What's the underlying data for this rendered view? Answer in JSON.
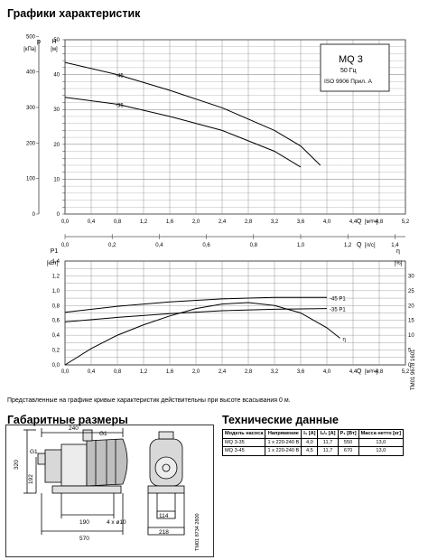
{
  "sections": {
    "curves_title": "Графики характеристик",
    "dims_title": "Габаритные размеры",
    "tech_title": "Технические данные"
  },
  "legend_box": {
    "model": "MQ 3",
    "freq": "50 Гц",
    "standard": "ISO 9906 Прил. A"
  },
  "note": "Представленные на графике кривые характеристик действительны при высоте всасывания 0 м.",
  "vertical_code_curves": "TM01 9678 1601",
  "vertical_code_dims": "TM01 8734 2800",
  "axis_units": {
    "p_label": "p",
    "p_unit": "[кПа]",
    "h_label": "H",
    "h_unit": "[м]",
    "q_label": "Q",
    "q_unit_m3": "[м³/ч]",
    "q_unit_ls": "[л/с]",
    "p1_label": "P1",
    "p1_unit": "[кВт]",
    "eta_label": "η",
    "eta_unit": "[%]"
  },
  "chart_data": [
    {
      "type": "line",
      "title": "",
      "xlabel": "Q [м³/ч]",
      "ylabel": "H [м]",
      "ylim": [
        0,
        50
      ],
      "xlim": [
        0,
        5.2
      ],
      "x_ticks": [
        "0.0",
        "0.4",
        "0.8",
        "1.2",
        "1.6",
        "2.0",
        "2.4",
        "2.8",
        "3.2",
        "3.6",
        "4.0",
        "4.4",
        "4.8",
        "5.2"
      ],
      "y_ticks": [
        "0",
        "10",
        "20",
        "30",
        "40",
        "50"
      ],
      "p_ticks": [
        "0",
        "100",
        "200",
        "300",
        "400",
        "500"
      ],
      "q_ls_ticks": [
        "0.0",
        "0.2",
        "0.4",
        "0.6",
        "0.8",
        "1.0",
        "1.2",
        "1.4"
      ],
      "grid": true,
      "series": [
        {
          "name": "-45",
          "x": [
            0,
            0.8,
            1.6,
            2.4,
            3.2,
            3.6,
            3.9
          ],
          "y": [
            43.5,
            40,
            35.5,
            30.5,
            24,
            19.5,
            14
          ]
        },
        {
          "name": "-35",
          "x": [
            0,
            0.8,
            1.6,
            2.4,
            3.2,
            3.6
          ],
          "y": [
            33.5,
            31.5,
            28,
            24,
            18,
            13.5
          ]
        }
      ]
    },
    {
      "type": "line",
      "title": "",
      "xlabel": "Q [м³/ч]",
      "ylabel": "P1 [кВт]",
      "ylim": [
        0,
        1.4
      ],
      "xlim": [
        0,
        5.2
      ],
      "x_ticks": [
        "0.0",
        "0.4",
        "0.8",
        "1.2",
        "1.6",
        "2.0",
        "2.4",
        "2.8",
        "3.2",
        "3.6",
        "4.0",
        "4.4",
        "4.8",
        "5.2"
      ],
      "y_ticks": [
        "0,0",
        "0,2",
        "0,4",
        "0,6",
        "0,8",
        "1,0",
        "1,2",
        "1,4"
      ],
      "eta_ticks": [
        "0",
        "5",
        "10",
        "15",
        "20",
        "25",
        "30"
      ],
      "grid": true,
      "series": [
        {
          "name": "-45 P1",
          "x": [
            0,
            0.8,
            1.6,
            2.4,
            3.2,
            4.0
          ],
          "y": [
            0.71,
            0.79,
            0.85,
            0.89,
            0.91,
            0.91
          ]
        },
        {
          "name": "-35 P1",
          "x": [
            0,
            0.8,
            1.6,
            2.4,
            3.2,
            4.0
          ],
          "y": [
            0.58,
            0.64,
            0.69,
            0.73,
            0.75,
            0.76
          ]
        },
        {
          "name": "η",
          "x": [
            0,
            0.4,
            0.8,
            1.2,
            1.6,
            2.0,
            2.4,
            2.8,
            3.2,
            3.6,
            4.0,
            4.2
          ],
          "y_eta": [
            0,
            5.5,
            10,
            13.5,
            16.5,
            19,
            20.5,
            21,
            20,
            17.5,
            12.5,
            9
          ]
        }
      ]
    }
  ],
  "dims": {
    "d240": "240",
    "g1_top": "G1",
    "g1_left": "G1",
    "d320": "320",
    "d192": "192",
    "d190": "190",
    "d4x": "4 x ø10",
    "d570": "570",
    "d114": "114",
    "d218": "218"
  },
  "table": {
    "headers": [
      "Модель насоса",
      "Напряжение",
      "I₁ [A]",
      "I₁/₁ [A]",
      "P₁ [Вт]",
      "Масса нетто [кг]"
    ],
    "rows": [
      [
        "MQ 3-35",
        "1 x 220-240 В",
        "4,0",
        "11,7",
        "550",
        "13,0"
      ],
      [
        "MQ 3-45",
        "1 x 220-240 В",
        "4,5",
        "11,7",
        "670",
        "13,0"
      ]
    ]
  }
}
